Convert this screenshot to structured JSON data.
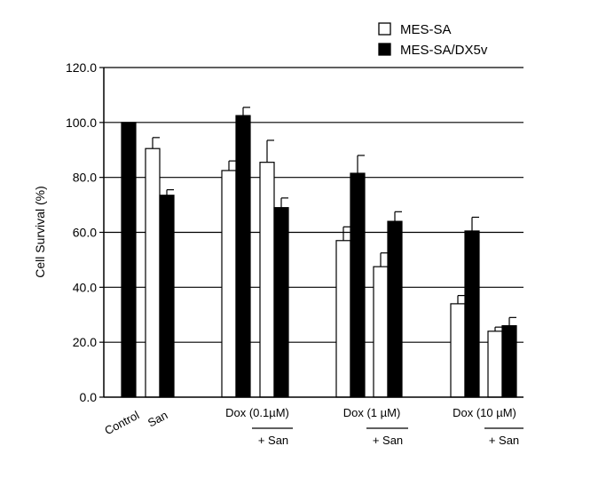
{
  "chart_data": {
    "type": "bar",
    "title": "",
    "xlabel": "",
    "ylabel": "Cell Survival (%)",
    "ylim": [
      0,
      120
    ],
    "yticks": [
      0,
      20,
      40,
      60,
      80,
      100,
      120
    ],
    "ytick_labels": [
      "0.0",
      "20.0",
      "40.0",
      "60.0",
      "80.0",
      "100.0",
      "120.0"
    ],
    "grid": true,
    "legend_position": "top-right",
    "categories": [
      "Control",
      "San",
      "Dox (0.1µM)",
      "+ San",
      "Dox (1 µM)",
      "+ San",
      "Dox (10 µM)",
      "+ San"
    ],
    "series": [
      {
        "name": "MES-SA",
        "color": "#ffffff",
        "values": [
          null,
          90.5,
          82.5,
          85.5,
          57,
          47.5,
          34,
          24
        ],
        "errors": [
          null,
          4,
          3.5,
          8,
          5,
          5,
          3,
          1.5
        ]
      },
      {
        "name": "MES-SA/DX5v",
        "color": "#000000",
        "values": [
          100,
          73.5,
          102.5,
          69,
          81.5,
          64,
          60.5,
          26
        ],
        "errors": [
          null,
          2,
          3,
          3.5,
          6.5,
          3.5,
          5,
          3
        ]
      }
    ]
  }
}
